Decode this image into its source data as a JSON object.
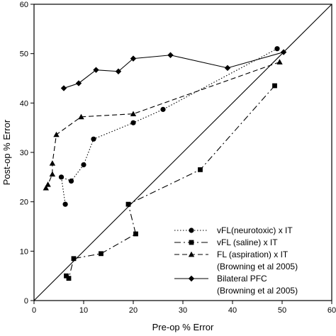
{
  "chart_data": {
    "type": "line",
    "xlabel": "Pre-op % Error",
    "ylabel": "Post-op % Error",
    "xlim": [
      0,
      60
    ],
    "ylim": [
      0,
      60
    ],
    "xticks": [
      0,
      10,
      20,
      30,
      40,
      50,
      60
    ],
    "yticks": [
      0,
      10,
      20,
      30,
      40,
      50,
      60
    ],
    "grid": false,
    "legend_position": "bottom-right",
    "reference_line": {
      "x": [
        0,
        60
      ],
      "y": [
        0,
        60
      ]
    },
    "series": [
      {
        "name": "vFL(neurotoxic) x IT",
        "marker": "circle",
        "linestyle": "dotted",
        "points": [
          [
            49,
            51
          ],
          [
            26,
            38.7
          ],
          [
            20,
            36
          ],
          [
            12,
            32.7
          ],
          [
            10,
            27.5
          ],
          [
            7.5,
            24.2
          ],
          [
            5.5,
            25
          ],
          [
            6.3,
            19.5
          ]
        ]
      },
      {
        "name": "vFL (saline) x IT",
        "marker": "square",
        "linestyle": "dashdot",
        "points": [
          [
            48.5,
            43.5
          ],
          [
            33.5,
            26.5
          ],
          [
            19,
            19.5
          ],
          [
            20.5,
            13.5
          ],
          [
            13.5,
            9.5
          ],
          [
            8,
            8.5
          ],
          [
            7,
            4.5
          ],
          [
            6.5,
            5
          ]
        ]
      },
      {
        "name": "FL (aspiration) x IT",
        "name_line2": "(Browning et al 2005)",
        "marker": "triangle",
        "linestyle": "dashed",
        "points": [
          [
            49.5,
            48.3
          ],
          [
            20,
            37.8
          ],
          [
            9.5,
            37.2
          ],
          [
            4.5,
            33.6
          ],
          [
            3.7,
            27.8
          ],
          [
            3.7,
            25.6
          ],
          [
            2.8,
            23.5
          ],
          [
            2.4,
            22.8
          ]
        ]
      },
      {
        "name": "Bilateral PFC",
        "name_line2": "(Browning et al 2005)",
        "marker": "diamond",
        "linestyle": "solid",
        "points": [
          [
            6,
            43
          ],
          [
            9,
            44
          ],
          [
            12.5,
            46.7
          ],
          [
            17,
            46.4
          ],
          [
            20,
            49
          ],
          [
            27.5,
            49.7
          ],
          [
            39,
            47.1
          ],
          [
            50.3,
            50.3
          ]
        ]
      }
    ]
  }
}
